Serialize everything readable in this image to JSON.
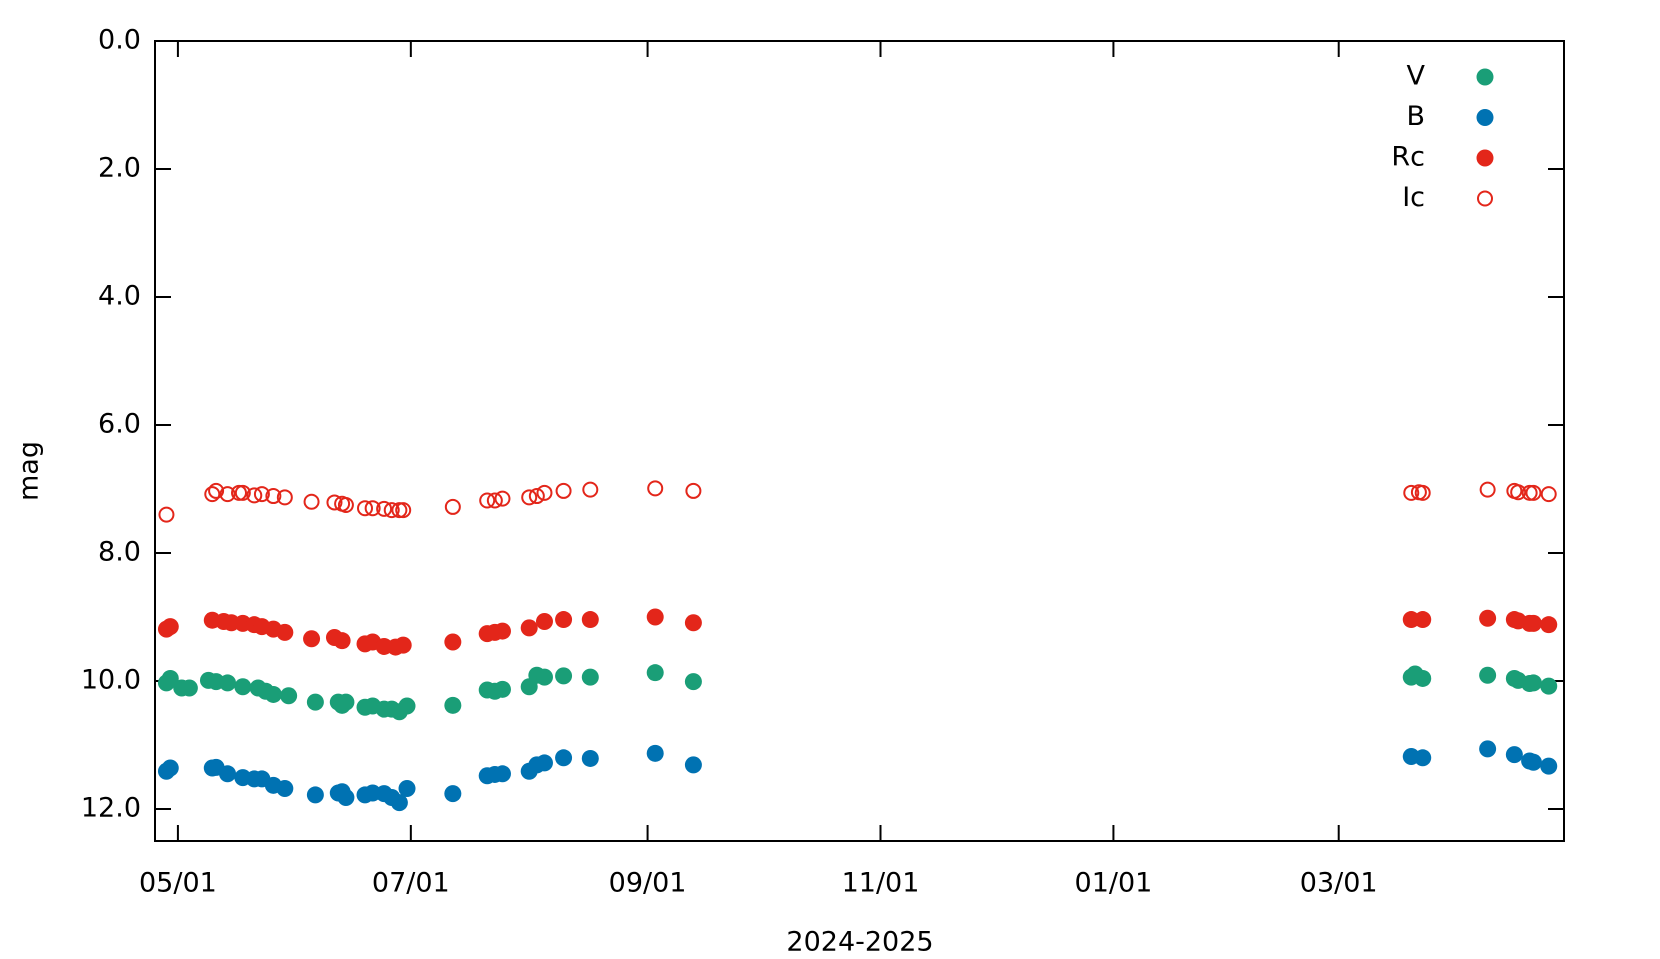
{
  "chart_data": {
    "type": "scatter",
    "x_label": "2024-2025",
    "y_label": "mag",
    "y_inverted": true,
    "legend": "top-right",
    "xlim": [
      "04/25",
      "04/29"
    ],
    "xticks": [
      "05/01",
      "07/01",
      "09/01",
      "11/01",
      "01/01",
      "03/01"
    ],
    "ylim": [
      0,
      12.5
    ],
    "yticks": [
      {
        "value": 0,
        "label": "0.0"
      },
      {
        "value": 2,
        "label": "2.0"
      },
      {
        "value": 4,
        "label": "4.0"
      },
      {
        "value": 6,
        "label": "6.0"
      },
      {
        "value": 8,
        "label": "8.0"
      },
      {
        "value": 10,
        "label": "10.0"
      },
      {
        "value": 12,
        "label": "12.0"
      }
    ],
    "series": [
      {
        "name": "V",
        "color": "#1a9e77",
        "marker": "filled",
        "x": [
          "04/28",
          "04/29",
          "05/02",
          "05/04",
          "05/09",
          "05/11",
          "05/14",
          "05/18",
          "05/22",
          "05/24",
          "05/26",
          "05/30",
          "06/06",
          "06/12",
          "06/13",
          "06/14",
          "06/19",
          "06/21",
          "06/24",
          "06/26",
          "06/28",
          "06/30",
          "07/12",
          "07/21",
          "07/23",
          "07/25",
          "08/01",
          "08/03",
          "08/05",
          "08/10",
          "08/17",
          "09/03",
          "09/13",
          "03/20",
          "03/21",
          "03/23",
          "04/09",
          "04/16",
          "04/17",
          "04/20",
          "04/21",
          "04/25"
        ],
        "values": [
          10.03,
          9.96,
          10.11,
          10.11,
          9.99,
          10.01,
          10.03,
          10.09,
          10.11,
          10.16,
          10.21,
          10.23,
          10.33,
          10.33,
          10.38,
          10.33,
          10.41,
          10.39,
          10.44,
          10.44,
          10.48,
          10.39,
          10.38,
          10.14,
          10.16,
          10.13,
          10.09,
          9.91,
          9.94,
          9.92,
          9.94,
          9.87,
          10.01,
          9.94,
          9.89,
          9.96,
          9.91,
          9.96,
          9.99,
          10.04,
          10.03,
          10.08
        ]
      },
      {
        "name": "B",
        "color": "#0072b2",
        "marker": "filled",
        "x": [
          "04/28",
          "04/29",
          "05/10",
          "05/11",
          "05/14",
          "05/18",
          "05/21",
          "05/23",
          "05/26",
          "05/29",
          "06/06",
          "06/12",
          "06/13",
          "06/14",
          "06/19",
          "06/21",
          "06/24",
          "06/26",
          "06/28",
          "06/30",
          "07/12",
          "07/21",
          "07/23",
          "07/25",
          "08/01",
          "08/03",
          "08/05",
          "08/10",
          "08/17",
          "09/03",
          "09/13",
          "03/20",
          "03/23",
          "04/09",
          "04/16",
          "04/20",
          "04/21",
          "04/25"
        ],
        "values": [
          11.41,
          11.36,
          11.36,
          11.35,
          11.45,
          11.51,
          11.53,
          11.53,
          11.63,
          11.68,
          11.78,
          11.75,
          11.73,
          11.82,
          11.78,
          11.75,
          11.76,
          11.82,
          11.9,
          11.68,
          11.76,
          11.48,
          11.46,
          11.45,
          11.41,
          11.31,
          11.28,
          11.2,
          11.21,
          11.13,
          11.31,
          11.18,
          11.2,
          11.06,
          11.15,
          11.25,
          11.27,
          11.33
        ]
      },
      {
        "name": "Rc",
        "color": "#e3261a",
        "marker": "filled",
        "x": [
          "04/28",
          "04/29",
          "05/10",
          "05/13",
          "05/15",
          "05/18",
          "05/21",
          "05/23",
          "05/26",
          "05/29",
          "06/05",
          "06/11",
          "06/13",
          "06/19",
          "06/21",
          "06/24",
          "06/27",
          "06/29",
          "07/12",
          "07/21",
          "07/23",
          "07/25",
          "08/01",
          "08/05",
          "08/10",
          "08/17",
          "09/03",
          "09/13",
          "03/20",
          "03/23",
          "04/09",
          "04/16",
          "04/17",
          "04/20",
          "04/21",
          "04/25"
        ],
        "values": [
          9.19,
          9.15,
          9.05,
          9.07,
          9.09,
          9.1,
          9.12,
          9.15,
          9.19,
          9.24,
          9.34,
          9.32,
          9.37,
          9.42,
          9.39,
          9.46,
          9.47,
          9.44,
          9.39,
          9.26,
          9.24,
          9.22,
          9.17,
          9.07,
          9.04,
          9.04,
          9.0,
          9.09,
          9.04,
          9.04,
          9.02,
          9.04,
          9.06,
          9.1,
          9.1,
          9.12
        ]
      },
      {
        "name": "Ic",
        "color": "#e3261a",
        "marker": "open",
        "x": [
          "04/28",
          "05/10",
          "05/11",
          "05/14",
          "05/17",
          "05/18",
          "05/21",
          "05/23",
          "05/26",
          "05/29",
          "06/05",
          "06/11",
          "06/13",
          "06/14",
          "06/19",
          "06/21",
          "06/24",
          "06/26",
          "06/28",
          "06/29",
          "07/12",
          "07/21",
          "07/23",
          "07/25",
          "08/01",
          "08/03",
          "08/05",
          "08/10",
          "08/17",
          "09/03",
          "09/13",
          "03/20",
          "03/22",
          "03/23",
          "04/09",
          "04/16",
          "04/17",
          "04/20",
          "04/21",
          "04/25"
        ],
        "values": [
          7.4,
          7.08,
          7.03,
          7.08,
          7.06,
          7.06,
          7.1,
          7.08,
          7.11,
          7.13,
          7.2,
          7.21,
          7.23,
          7.25,
          7.3,
          7.3,
          7.31,
          7.33,
          7.33,
          7.33,
          7.28,
          7.18,
          7.18,
          7.15,
          7.13,
          7.11,
          7.06,
          7.03,
          7.01,
          6.99,
          7.03,
          7.06,
          7.05,
          7.06,
          7.01,
          7.03,
          7.05,
          7.06,
          7.06,
          7.08
        ]
      }
    ]
  }
}
